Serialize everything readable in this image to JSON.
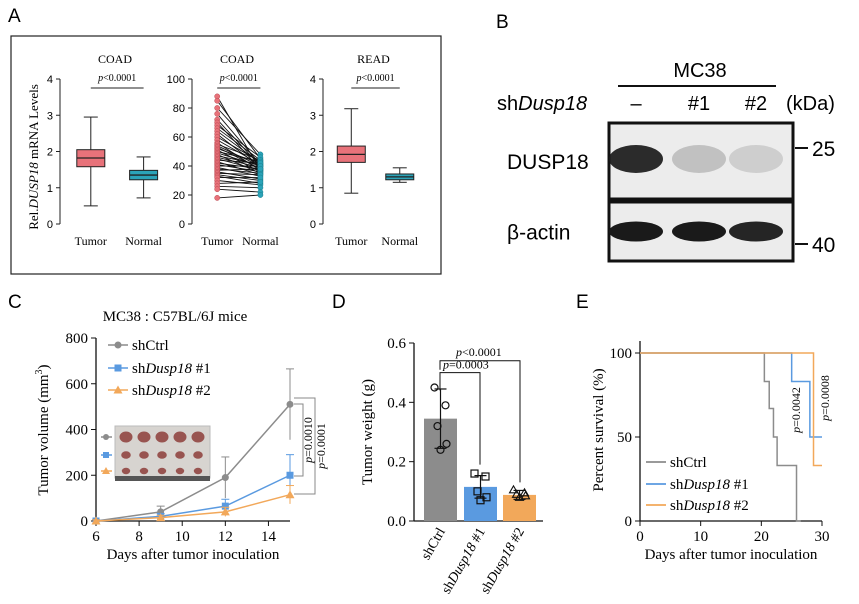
{
  "panel_labels": {
    "a": "A",
    "b": "B",
    "c": "C",
    "d": "D",
    "e": "E"
  },
  "colors": {
    "tumor": "#e8727a",
    "normal": "#2ba3b8",
    "ctrl": "#8c8c8c",
    "sh1": "#5a9ae0",
    "sh2": "#f2a85a",
    "blot_bg": "#ececec",
    "band": "#1a1a1a"
  },
  "panel_a": {
    "ylabel_prefix": "Rel.",
    "ylabel_gene": "DUSP18",
    "ylabel_suffix": " mRNA Levels",
    "p_italic": "p",
    "charts": [
      {
        "title": "COAD",
        "p_text": "<0.0001",
        "type": "box",
        "categories": [
          "Tumor",
          "Normal"
        ],
        "yticks": [
          "0",
          "1",
          "2",
          "3",
          "4"
        ],
        "ylim": [
          0,
          4
        ],
        "boxes": [
          {
            "name": "Tumor",
            "min": 0.5,
            "q1": 1.58,
            "median": 1.82,
            "q3": 2.05,
            "max": 2.95
          },
          {
            "name": "Normal",
            "min": 0.72,
            "q1": 1.22,
            "median": 1.35,
            "q3": 1.48,
            "max": 1.85
          }
        ]
      },
      {
        "title": "COAD",
        "p_text": "<0.0001",
        "type": "paired",
        "categories": [
          "Tumor",
          "Normal"
        ],
        "yticks": [
          "0",
          "20",
          "40",
          "60",
          "80",
          "100"
        ],
        "ylim": [
          0,
          100
        ],
        "pairs": [
          [
            88,
            37
          ],
          [
            85,
            45
          ],
          [
            80,
            48
          ],
          [
            76,
            41
          ],
          [
            72,
            40
          ],
          [
            70,
            38
          ],
          [
            68,
            46
          ],
          [
            66,
            44
          ],
          [
            64,
            42
          ],
          [
            62,
            39
          ],
          [
            60,
            43
          ],
          [
            58,
            41
          ],
          [
            56,
            37
          ],
          [
            55,
            44
          ],
          [
            54,
            40
          ],
          [
            53,
            38
          ],
          [
            52,
            42
          ],
          [
            51,
            36
          ],
          [
            50,
            43
          ],
          [
            49,
            40
          ],
          [
            48,
            35
          ],
          [
            47,
            41
          ],
          [
            46,
            39
          ],
          [
            45,
            37
          ],
          [
            44,
            42
          ],
          [
            43,
            34
          ],
          [
            42,
            38
          ],
          [
            41,
            36
          ],
          [
            40,
            40
          ],
          [
            39,
            33
          ],
          [
            38,
            35
          ],
          [
            37,
            38
          ],
          [
            36,
            31
          ],
          [
            35,
            34
          ],
          [
            34,
            30
          ],
          [
            33,
            28
          ],
          [
            32,
            32
          ],
          [
            30,
            27
          ],
          [
            28,
            29
          ],
          [
            26,
            25
          ],
          [
            24,
            22
          ],
          [
            18,
            20
          ]
        ]
      },
      {
        "title": "READ",
        "p_text": "<0.0001",
        "type": "box",
        "categories": [
          "Tumor",
          "Normal"
        ],
        "yticks": [
          "0",
          "1",
          "2",
          "3",
          "4"
        ],
        "ylim": [
          0,
          4
        ],
        "boxes": [
          {
            "name": "Tumor",
            "min": 0.85,
            "q1": 1.7,
            "median": 1.92,
            "q3": 2.15,
            "max": 3.18
          },
          {
            "name": "Normal",
            "min": 1.15,
            "q1": 1.22,
            "median": 1.3,
            "q3": 1.38,
            "max": 1.55
          }
        ]
      }
    ]
  },
  "panel_b": {
    "cell_line": "MC38",
    "row_label_prefix": "sh",
    "row_label_gene": "Dusp18",
    "lanes": [
      "–",
      "#1",
      "#2"
    ],
    "unit": "(kDa)",
    "blots": [
      {
        "label": "DUSP18",
        "marker": "25",
        "intensities": [
          0.92,
          0.2,
          0.14
        ]
      },
      {
        "label": "β-actin",
        "marker": "40",
        "intensities": [
          1.0,
          1.0,
          0.95
        ]
      }
    ]
  },
  "chart_data": [
    {
      "type": "line",
      "title": "MC38 : C57BL/6J mice",
      "xlabel": "Days after tumor inoculation",
      "ylabel_prefix": "Tumor volume (mm",
      "ylabel_sup": "3",
      "ylabel_suffix": ")",
      "xlim": [
        6,
        15
      ],
      "ylim": [
        0,
        800
      ],
      "xticks": [
        "6",
        "8",
        "10",
        "12",
        "14"
      ],
      "yticks": [
        "0",
        "200",
        "400",
        "600",
        "800"
      ],
      "x": [
        6,
        9,
        12,
        15
      ],
      "series": [
        {
          "name": "shCtrl",
          "values": [
            0,
            40,
            190,
            510
          ],
          "err": [
            5,
            25,
            90,
            155
          ]
        },
        {
          "name": "shDusp18 #1",
          "values": [
            0,
            20,
            65,
            200
          ],
          "err": [
            5,
            12,
            30,
            90
          ]
        },
        {
          "name": "shDusp18 #2",
          "values": [
            0,
            15,
            40,
            115
          ],
          "err": [
            5,
            10,
            20,
            40
          ]
        }
      ],
      "legend": [
        {
          "prefix": "shCtrl",
          "gene": "",
          "suffix": ""
        },
        {
          "prefix": "sh",
          "gene": "Dusp18",
          "suffix": " #1"
        },
        {
          "prefix": "sh",
          "gene": "Dusp18",
          "suffix": " #2"
        }
      ],
      "p_values": [
        {
          "italic": "p",
          "text": "=0.0010"
        },
        {
          "italic": "p",
          "text": "=0.0001"
        }
      ]
    },
    {
      "type": "bar",
      "ylabel": "Tumor weight (g)",
      "ylim": [
        0,
        0.6
      ],
      "yticks": [
        "0.0",
        "0.2",
        "0.4",
        "0.6"
      ],
      "categories": [
        "shCtrl",
        "shDusp18 #1",
        "shDusp18 #2"
      ],
      "category_labels": [
        {
          "prefix": "shCtrl",
          "gene": "",
          "suffix": ""
        },
        {
          "prefix": "sh",
          "gene": "Dusp18",
          "suffix": " #1"
        },
        {
          "prefix": "sh",
          "gene": "Dusp18",
          "suffix": " #2"
        }
      ],
      "values": [
        0.345,
        0.115,
        0.088
      ],
      "err": [
        0.1,
        0.038,
        0.015
      ],
      "points": [
        [
          0.45,
          0.39,
          0.32,
          0.26,
          0.24
        ],
        [
          0.16,
          0.15,
          0.1,
          0.08,
          0.07
        ],
        [
          0.105,
          0.095,
          0.09,
          0.085,
          0.08
        ]
      ],
      "p_values": [
        {
          "italic": "p",
          "text": "=0.0003"
        },
        {
          "italic": "p",
          "text": "<0.0001"
        }
      ]
    },
    {
      "type": "line",
      "subtype": "survival",
      "xlabel": "Days after tumor inoculation",
      "ylabel": "Percent survival (%)",
      "xlim": [
        0,
        30
      ],
      "ylim": [
        0,
        100
      ],
      "xticks": [
        "0",
        "10",
        "20",
        "30"
      ],
      "yticks": [
        "0",
        "50",
        "100"
      ],
      "series": [
        {
          "name": "shCtrl",
          "steps": [
            [
              0,
              100
            ],
            [
              20.5,
              100
            ],
            [
              20.5,
              83
            ],
            [
              21.3,
              83
            ],
            [
              21.3,
              67
            ],
            [
              22,
              67
            ],
            [
              22,
              50
            ],
            [
              22.6,
              50
            ],
            [
              22.6,
              33
            ],
            [
              25.8,
              33
            ],
            [
              25.8,
              0
            ],
            [
              26.5,
              0
            ]
          ]
        },
        {
          "name": "shDusp18 #1",
          "steps": [
            [
              0,
              100
            ],
            [
              25,
              100
            ],
            [
              25,
              83
            ],
            [
              28,
              83
            ],
            [
              28,
              50
            ],
            [
              30,
              50
            ]
          ]
        },
        {
          "name": "shDusp18 #2",
          "steps": [
            [
              0,
              100
            ],
            [
              28.6,
              100
            ],
            [
              28.6,
              33
            ],
            [
              30,
              33
            ]
          ]
        }
      ],
      "legend": [
        {
          "prefix": "shCtrl",
          "gene": "",
          "suffix": ""
        },
        {
          "prefix": "sh",
          "gene": "Dusp18",
          "suffix": " #1"
        },
        {
          "prefix": "sh",
          "gene": "Dusp18",
          "suffix": " #2"
        }
      ],
      "p_values": [
        {
          "italic": "p",
          "text": "=0.0042"
        },
        {
          "italic": "p",
          "text": "=0.0008"
        }
      ]
    }
  ]
}
